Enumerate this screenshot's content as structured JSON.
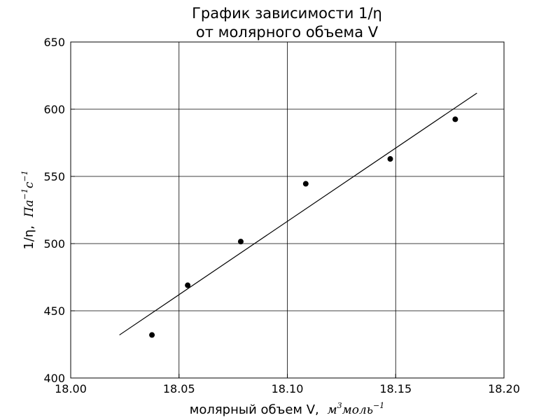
{
  "chart_data": {
    "type": "scatter",
    "title": [
      "График зависимости 1/η",
      "от молярного объема V"
    ],
    "xlabel": {
      "text": "молярный объем V,",
      "unit": "м",
      "unit_sup": "3",
      "unit2": "моль",
      "unit2_sup": "−1"
    },
    "ylabel": {
      "text": "1/η,",
      "unit": "Па",
      "unit_sup": "−1",
      "unit2": "с",
      "unit2_sup": "−1"
    },
    "xlim": [
      18.0,
      18.2
    ],
    "ylim": [
      400,
      650
    ],
    "xticks": [
      "18.00",
      "18.05",
      "18.10",
      "18.15",
      "18.20"
    ],
    "yticks": [
      "400",
      "450",
      "500",
      "550",
      "600",
      "650"
    ],
    "grid": true,
    "series": [
      {
        "kind": "points",
        "x": [
          18.0375,
          18.054,
          18.0785,
          18.1085,
          18.1475,
          18.1775
        ],
        "y": [
          432,
          469,
          501.5,
          544.5,
          563,
          592.5
        ]
      },
      {
        "kind": "fit-line",
        "x": [
          18.0225,
          18.1875
        ],
        "y": [
          432,
          612
        ]
      }
    ]
  }
}
